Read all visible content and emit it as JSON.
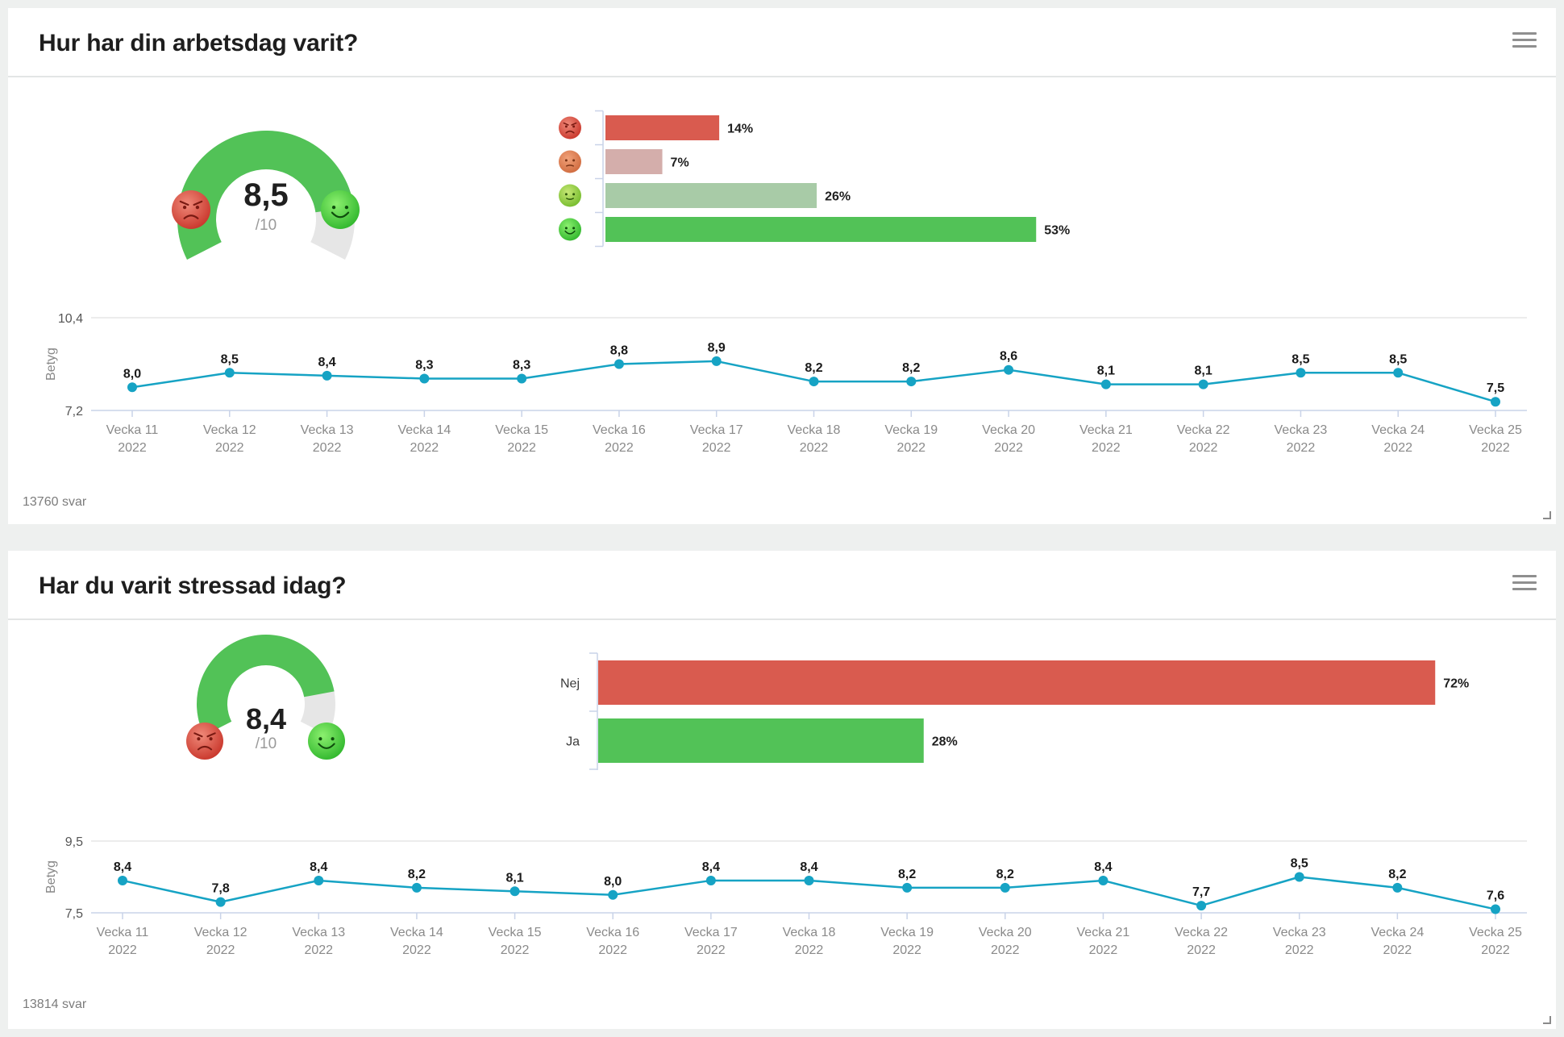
{
  "colors": {
    "gauge_green": "#52c257",
    "gauge_track": "#e6e6e6",
    "line": "#16a3c4",
    "axis": "#c9d3e8",
    "grid": "#e6e6e6",
    "label_gray": "#8a8a8a"
  },
  "panels": [
    {
      "title": "Hur har din arbetsdag varit?",
      "responses": "13760 svar",
      "gauge": {
        "value": 8.5,
        "max": 10,
        "value_label": "8,5",
        "max_label": "/10",
        "low_icon": "angry-face-icon",
        "high_icon": "smiley-face-icon"
      },
      "bars": {
        "type": "bar",
        "categories": [
          "angry-face-icon",
          "frowning-face-icon",
          "slight-smile-icon",
          "happy-face-icon"
        ],
        "values": [
          14,
          7,
          26,
          53
        ],
        "value_labels": [
          "14%",
          "7%",
          "26%",
          "53%"
        ],
        "colors": [
          "#d95b4f",
          "#d4aeab",
          "#a8cba7",
          "#52c257"
        ]
      },
      "chart_data": {
        "type": "line",
        "ylabel": "Betyg",
        "ylim": [
          7.2,
          10.4
        ],
        "ytick_labels": [
          "10,4",
          "7,2"
        ],
        "x": [
          "Vecka 11",
          "Vecka 12",
          "Vecka 13",
          "Vecka 14",
          "Vecka 15",
          "Vecka 16",
          "Vecka 17",
          "Vecka 18",
          "Vecka 19",
          "Vecka 20",
          "Vecka 21",
          "Vecka 22",
          "Vecka 23",
          "Vecka 24",
          "Vecka 25"
        ],
        "x_year": "2022",
        "values": [
          8.0,
          8.5,
          8.4,
          8.3,
          8.3,
          8.8,
          8.9,
          8.2,
          8.2,
          8.6,
          8.1,
          8.1,
          8.5,
          8.5,
          7.5
        ],
        "value_labels": [
          "8,0",
          "8,5",
          "8,4",
          "8,3",
          "8,3",
          "8,8",
          "8,9",
          "8,2",
          "8,2",
          "8,6",
          "8,1",
          "8,1",
          "8,5",
          "8,5",
          "7,5"
        ]
      }
    },
    {
      "title": "Har du varit stressad idag?",
      "responses": "13814 svar",
      "gauge": {
        "value": 8.4,
        "max": 10,
        "value_label": "8,4",
        "max_label": "/10",
        "low_icon": "angry-face-icon",
        "high_icon": "smiley-face-icon"
      },
      "bars": {
        "type": "bar",
        "categories": [
          "Nej",
          "Ja"
        ],
        "values": [
          72,
          28
        ],
        "value_labels": [
          "72%",
          "28%"
        ],
        "colors": [
          "#d95b4f",
          "#52c257"
        ]
      },
      "chart_data": {
        "type": "line",
        "ylabel": "Betyg",
        "ylim": [
          7.5,
          9.5
        ],
        "ytick_labels": [
          "9,5",
          "7,5"
        ],
        "x": [
          "Vecka 11",
          "Vecka 12",
          "Vecka 13",
          "Vecka 14",
          "Vecka 15",
          "Vecka 16",
          "Vecka 17",
          "Vecka 18",
          "Vecka 19",
          "Vecka 20",
          "Vecka 21",
          "Vecka 22",
          "Vecka 23",
          "Vecka 24",
          "Vecka 25"
        ],
        "x_year": "2022",
        "values": [
          8.4,
          7.8,
          8.4,
          8.2,
          8.1,
          8.0,
          8.4,
          8.4,
          8.2,
          8.2,
          8.4,
          7.7,
          8.5,
          8.2,
          7.6
        ],
        "value_labels": [
          "8,4",
          "7,8",
          "8,4",
          "8,2",
          "8,1",
          "8,0",
          "8,4",
          "8,4",
          "8,2",
          "8,2",
          "8,4",
          "7,7",
          "8,5",
          "8,2",
          "7,6"
        ]
      }
    }
  ]
}
